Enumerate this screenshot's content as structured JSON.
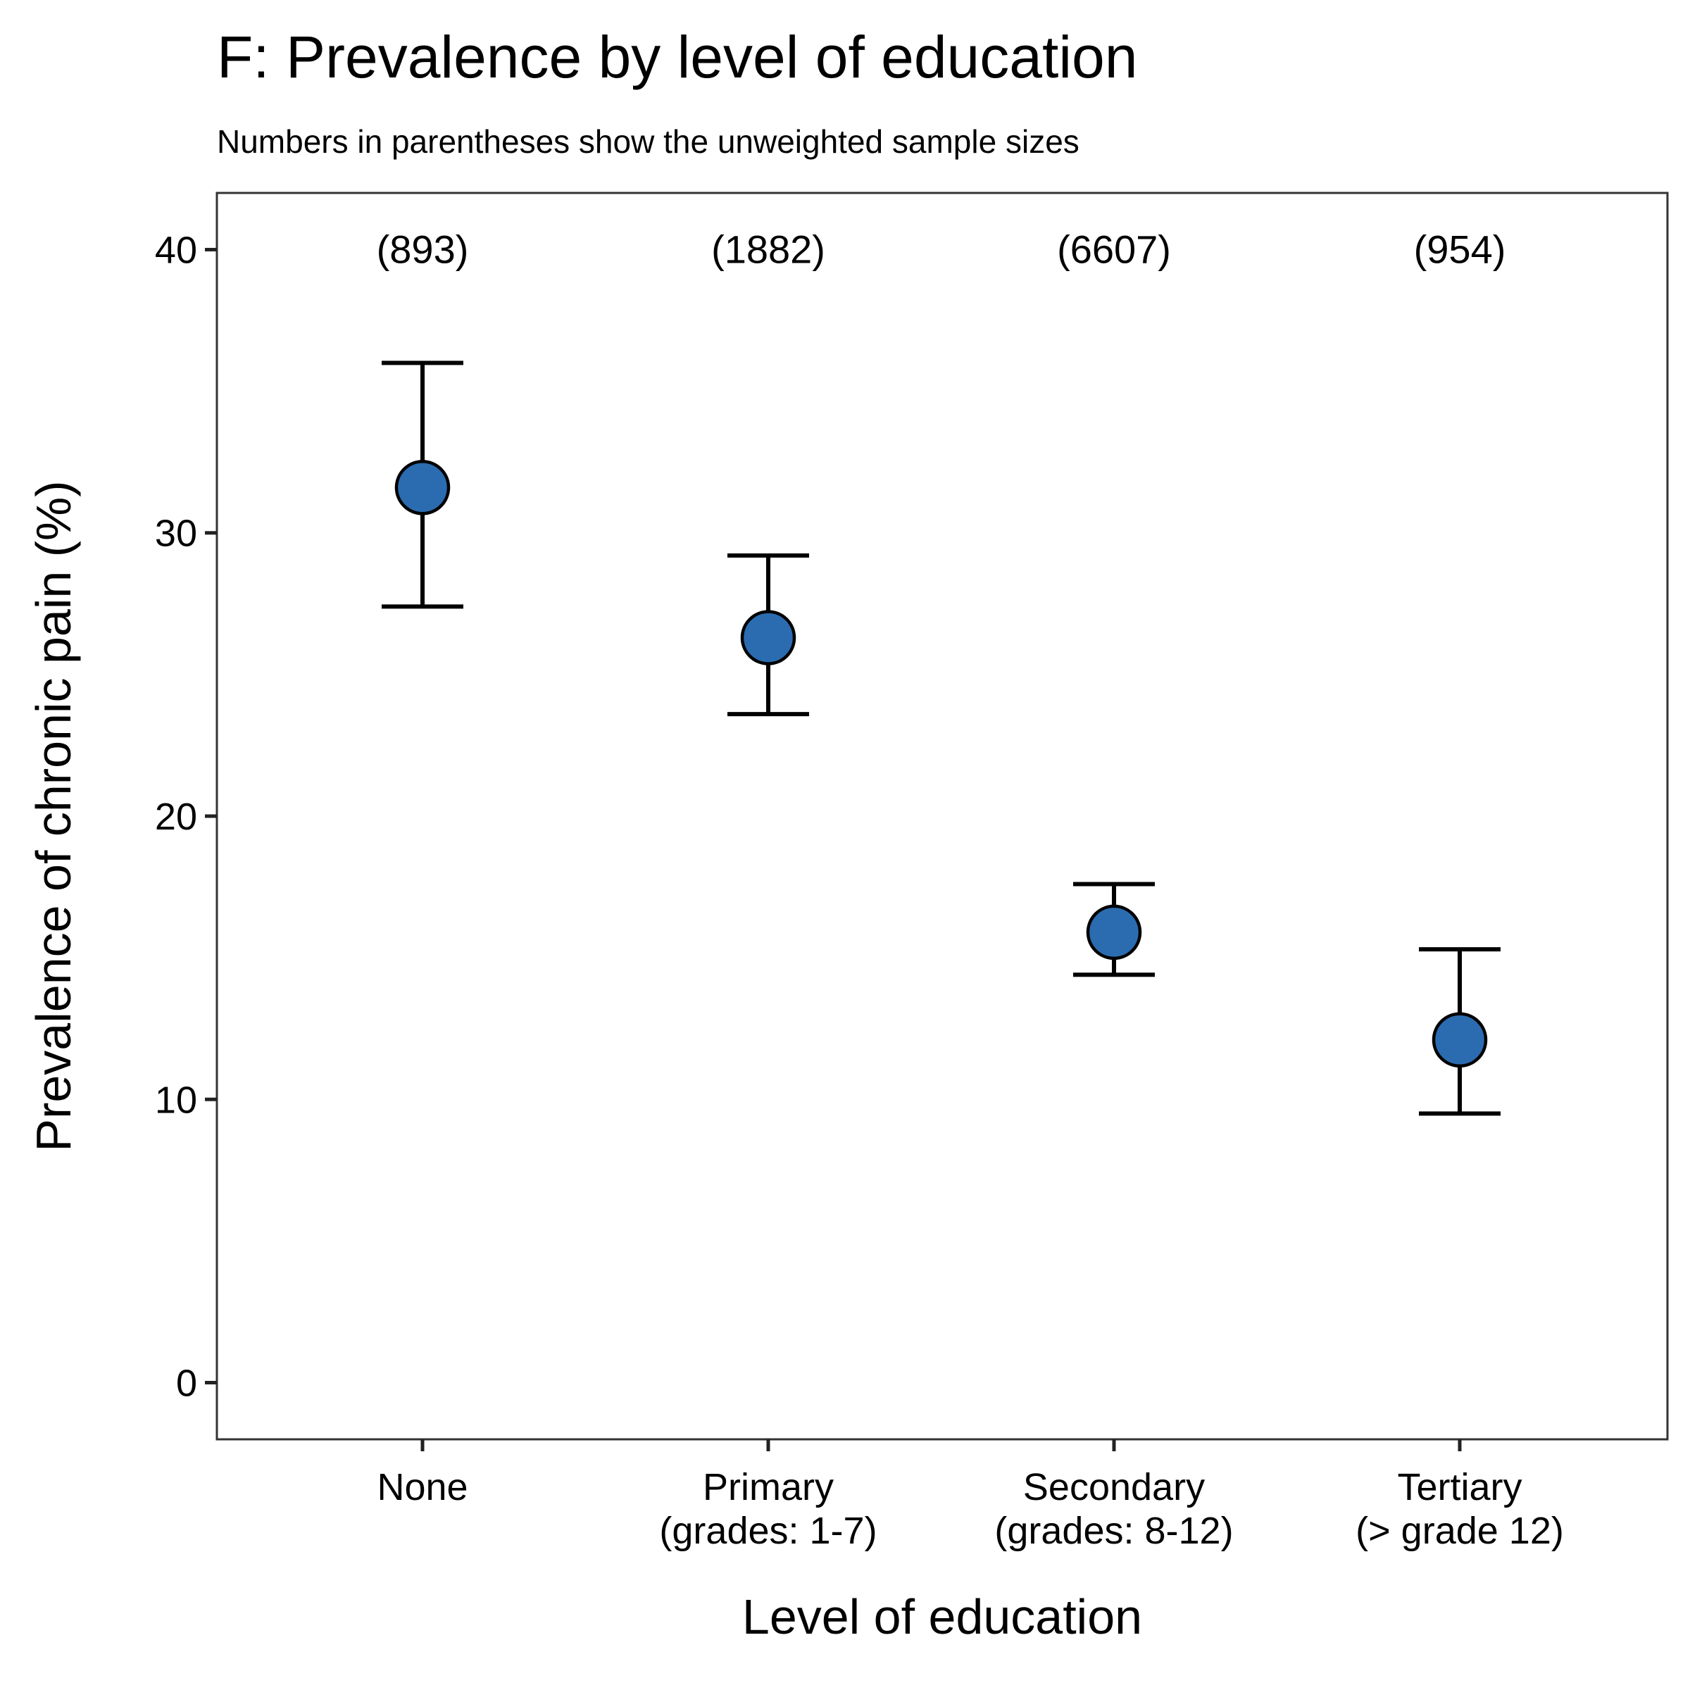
{
  "chart_data": {
    "type": "scatter",
    "title": "F: Prevalence by level of education",
    "subtitle": "Numbers in parentheses show the unweighted sample sizes",
    "xlabel": "Level of education",
    "ylabel": "Prevalence of chronic pain (%)",
    "ylim": [
      -2,
      42
    ],
    "yticks": [
      0,
      10,
      20,
      30,
      40
    ],
    "grid": false,
    "point_color": "#2B6CB0",
    "categories": [
      [
        "None"
      ],
      [
        "Primary",
        "(grades: 1-7)"
      ],
      [
        "Secondary",
        "(grades: 8-12)"
      ],
      [
        "Tertiary",
        "(> grade 12)"
      ]
    ],
    "points": [
      {
        "value": 31.6,
        "lower": 27.4,
        "upper": 36.0,
        "n_label": "(893)"
      },
      {
        "value": 26.3,
        "lower": 23.6,
        "upper": 29.2,
        "n_label": "(1882)"
      },
      {
        "value": 15.9,
        "lower": 14.4,
        "upper": 17.6,
        "n_label": "(6607)"
      },
      {
        "value": 12.1,
        "lower": 9.5,
        "upper": 15.3,
        "n_label": "(954)"
      }
    ],
    "n_label_y": 40
  }
}
